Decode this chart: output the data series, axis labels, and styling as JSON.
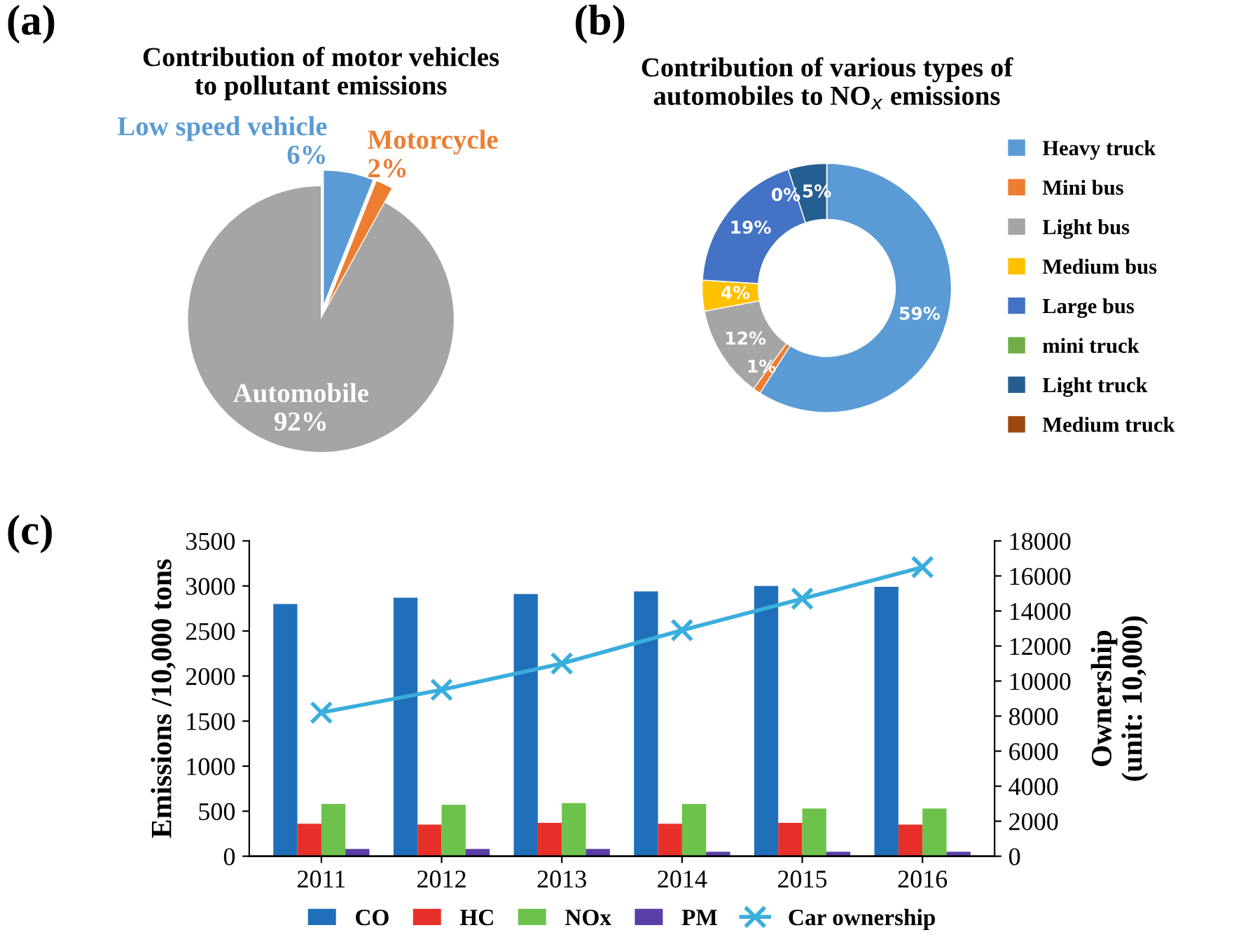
{
  "chart_data": [
    {
      "type": "pie",
      "title": "Contribution of motor vehicles\nto pollutant emissions",
      "annotations": [
        "(a)"
      ],
      "categories": [
        "Low speed vehicle",
        "Motorcycle",
        "Automobile"
      ],
      "values": [
        6,
        2,
        92
      ],
      "colors": [
        "#5b9bd5",
        "#ed7d31",
        "#a5a5a5"
      ],
      "value_labels": [
        "6%",
        "2%",
        "92%"
      ],
      "legend": false
    },
    {
      "type": "donut",
      "title": "Contribution of various types of\nautomobiles to NO$_{x}$ emissions",
      "annotations": [
        "(b)"
      ],
      "categories": [
        "Heavy truck",
        "Mini bus",
        "Light bus",
        "Medium bus",
        "Large bus",
        "mini truck",
        "Light truck",
        "Medium truck"
      ],
      "values": [
        59,
        1,
        12,
        4,
        19,
        0,
        5,
        0
      ],
      "colors": [
        "#5b9bd5",
        "#ed7d31",
        "#a5a5a5",
        "#ffc000",
        "#4472c4",
        "#70ad47",
        "#255e91",
        "#9e480e"
      ],
      "value_labels": [
        "59%",
        "1%",
        "12%",
        "4%",
        "19%",
        "0%",
        "5%",
        null
      ],
      "legend": "right"
    },
    {
      "type": "bar",
      "annotations": [
        "(c)"
      ],
      "ylabel": "Emissions /10,000 tons",
      "y2label": "Ownership\n(unit: 10,000)",
      "categories": [
        "2011",
        "2012",
        "2013",
        "2014",
        "2015",
        "2016"
      ],
      "series": [
        {
          "name": "CO",
          "color": "#1f6fba",
          "values": [
            2800,
            2870,
            2910,
            2940,
            3000,
            2990
          ]
        },
        {
          "name": "HC",
          "color": "#e8302a",
          "values": [
            360,
            350,
            370,
            360,
            370,
            350
          ]
        },
        {
          "name": "NOx",
          "color": "#6cc24a",
          "values": [
            580,
            570,
            590,
            580,
            530,
            530
          ]
        },
        {
          "name": "PM",
          "color": "#5b3fa8",
          "values": [
            80,
            80,
            80,
            50,
            50,
            50
          ]
        },
        {
          "name": "Car ownership",
          "type": "line",
          "axis": "y2",
          "color": "#3aaedc",
          "marker": "cross",
          "values": [
            8200,
            9500,
            11000,
            12900,
            14700,
            16500
          ]
        }
      ],
      "ylim": [
        0,
        3500
      ],
      "yticks": [
        0,
        500,
        1000,
        1500,
        2000,
        2500,
        3000,
        3500
      ],
      "y2lim": [
        0,
        18000
      ],
      "y2ticks": [
        0,
        2000,
        4000,
        6000,
        8000,
        10000,
        12000,
        14000,
        16000,
        18000
      ],
      "grid": false,
      "legend": "bottom"
    }
  ]
}
